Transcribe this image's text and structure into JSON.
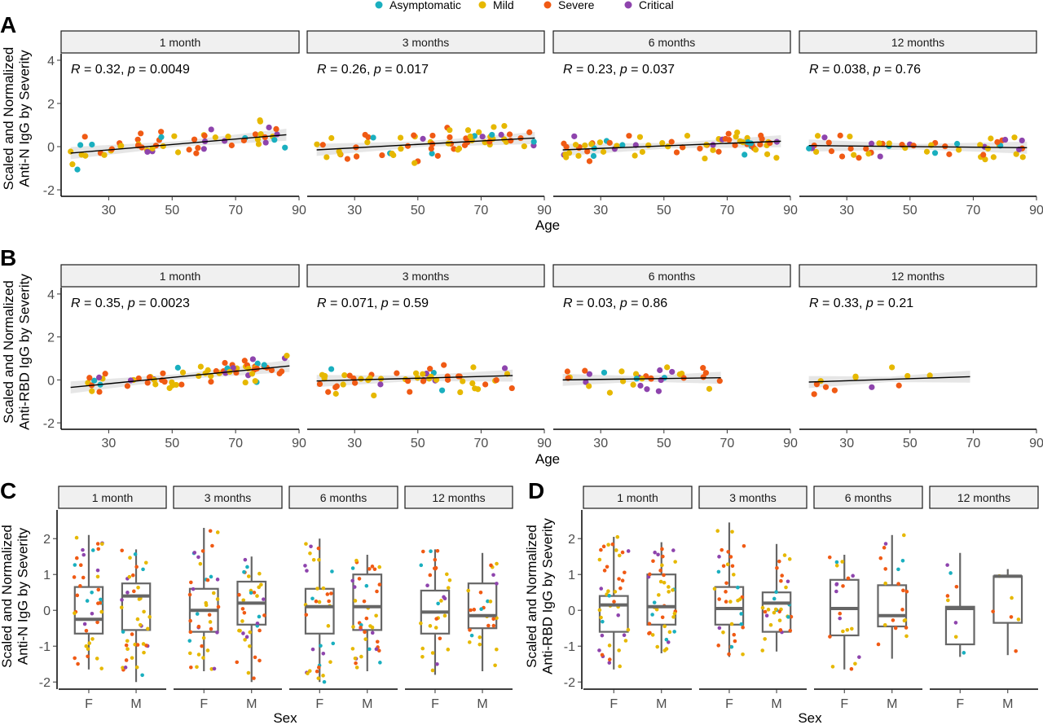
{
  "legend": {
    "items": [
      {
        "label": "Asymptomatic",
        "color": "#1aafbf"
      },
      {
        "label": "Mild",
        "color": "#e6b800"
      },
      {
        "label": "Severe",
        "color": "#f05a14"
      },
      {
        "label": "Critical",
        "color": "#8e44ad"
      }
    ]
  },
  "chart_data": [
    {
      "type": "scatter",
      "panel_label": "A",
      "ylabel": "Scaled and Normalized\nAnti-N IgG by Severity",
      "xlabel": "Age",
      "xlim": [
        15,
        90
      ],
      "xticks": [
        30,
        50,
        70,
        90
      ],
      "ylim": [
        -2.3,
        4.3
      ],
      "yticks": [
        -2,
        0,
        2,
        4
      ],
      "facets": [
        {
          "title": "1 month",
          "r": "0.32",
          "p": "0.0049",
          "fit": [
            [
              18,
              -0.3
            ],
            [
              86,
              0.55
            ]
          ],
          "n": 60
        },
        {
          "title": "3 months",
          "r": "0.26",
          "p": "0.017",
          "fit": [
            [
              18,
              -0.15
            ],
            [
              87,
              0.4
            ]
          ],
          "n": 70
        },
        {
          "title": "6 months",
          "r": "0.23",
          "p": "0.037",
          "fit": [
            [
              18,
              -0.15
            ],
            [
              87,
              0.25
            ]
          ],
          "n": 75
        },
        {
          "title": "12 months",
          "r": "0.038",
          "p": "0.76",
          "fit": [
            [
              18,
              0.05
            ],
            [
              87,
              -0.05
            ]
          ],
          "n": 55
        }
      ]
    },
    {
      "type": "scatter",
      "panel_label": "B",
      "ylabel": "Scaled and Normalized\nAnti-RBD IgG by Severity",
      "xlabel": "Age",
      "xlim": [
        15,
        90
      ],
      "xticks": [
        30,
        50,
        70,
        90
      ],
      "ylim": [
        -2.3,
        4.3
      ],
      "yticks": [
        -2,
        0,
        2,
        4
      ],
      "facets": [
        {
          "title": "1 month",
          "r": "0.35",
          "p": "0.0023",
          "fit": [
            [
              18,
              -0.35
            ],
            [
              87,
              0.65
            ]
          ],
          "n": 70
        },
        {
          "title": "3 months",
          "r": "0.071",
          "p": "0.59",
          "fit": [
            [
              18,
              -0.05
            ],
            [
              80,
              0.2
            ]
          ],
          "n": 55
        },
        {
          "title": "6 months",
          "r": "0.03",
          "p": "0.86",
          "fit": [
            [
              18,
              0.0
            ],
            [
              68,
              0.1
            ]
          ],
          "n": 35
        },
        {
          "title": "12 months",
          "r": "0.33",
          "p": "0.21",
          "fit": [
            [
              18,
              -0.1
            ],
            [
              69,
              0.15
            ]
          ],
          "n": 12
        }
      ]
    },
    {
      "type": "box",
      "panel_label": "C",
      "ylabel": "Scaled and Normalized\nAnti-N IgG by Severity",
      "xlabel": "Sex",
      "categories": [
        "F",
        "M"
      ],
      "ylim": [
        -2.2,
        2.8
      ],
      "yticks": [
        -2,
        -1,
        0,
        1,
        2
      ],
      "facets": [
        {
          "title": "1 month",
          "boxes": [
            {
              "group": "F",
              "min": -1.65,
              "q1": -0.65,
              "median": -0.25,
              "q3": 0.65,
              "max": 2.1,
              "n": 40
            },
            {
              "group": "M",
              "min": -2.0,
              "q1": -0.55,
              "median": 0.4,
              "q3": 0.75,
              "max": 1.7,
              "n": 40
            }
          ]
        },
        {
          "title": "3 months",
          "boxes": [
            {
              "group": "F",
              "min": -1.7,
              "q1": -0.6,
              "median": 0.0,
              "q3": 0.6,
              "max": 2.3,
              "n": 40
            },
            {
              "group": "M",
              "min": -2.0,
              "q1": -0.4,
              "median": 0.2,
              "q3": 0.8,
              "max": 1.5,
              "n": 35
            }
          ]
        },
        {
          "title": "6 months",
          "boxes": [
            {
              "group": "F",
              "min": -2.0,
              "q1": -0.65,
              "median": 0.1,
              "q3": 0.6,
              "max": 2.0,
              "n": 35
            },
            {
              "group": "M",
              "min": -1.7,
              "q1": -0.55,
              "median": 0.1,
              "q3": 1.0,
              "max": 1.55,
              "n": 40
            }
          ]
        },
        {
          "title": "12 months",
          "boxes": [
            {
              "group": "F",
              "min": -1.8,
              "q1": -0.65,
              "median": -0.05,
              "q3": 0.55,
              "max": 1.7,
              "n": 30
            },
            {
              "group": "M",
              "min": -1.7,
              "q1": -0.5,
              "median": -0.15,
              "q3": 0.75,
              "max": 1.6,
              "n": 25
            }
          ]
        }
      ]
    },
    {
      "type": "box",
      "panel_label": "D",
      "ylabel": "Scaled and Normalized\nAnti-RBD IgG by Severity",
      "xlabel": "Sex",
      "categories": [
        "F",
        "M"
      ],
      "ylim": [
        -2.2,
        2.8
      ],
      "yticks": [
        -2,
        -1,
        0,
        1,
        2
      ],
      "facets": [
        {
          "title": "1 month",
          "boxes": [
            {
              "group": "F",
              "min": -1.65,
              "q1": -0.6,
              "median": 0.15,
              "q3": 0.4,
              "max": 2.05,
              "n": 40
            },
            {
              "group": "M",
              "min": -1.2,
              "q1": -0.4,
              "median": 0.1,
              "q3": 1.0,
              "max": 1.9,
              "n": 40
            }
          ]
        },
        {
          "title": "3 months",
          "boxes": [
            {
              "group": "F",
              "min": -1.3,
              "q1": -0.4,
              "median": 0.05,
              "q3": 0.65,
              "max": 2.45,
              "n": 35
            },
            {
              "group": "M",
              "min": -1.15,
              "q1": -0.6,
              "median": 0.2,
              "q3": 0.5,
              "max": 1.85,
              "n": 30
            }
          ]
        },
        {
          "title": "6 months",
          "boxes": [
            {
              "group": "F",
              "min": -1.65,
              "q1": -0.7,
              "median": 0.05,
              "q3": 0.85,
              "max": 1.55,
              "n": 20
            },
            {
              "group": "M",
              "min": -1.35,
              "q1": -0.45,
              "median": -0.15,
              "q3": 0.7,
              "max": 2.1,
              "n": 20
            }
          ]
        },
        {
          "title": "12 months",
          "boxes": [
            {
              "group": "F",
              "min": -1.3,
              "q1": -0.95,
              "median": 0.05,
              "q3": 0.1,
              "max": 1.6,
              "n": 8
            },
            {
              "group": "M",
              "min": -1.25,
              "q1": -0.35,
              "median": 0.95,
              "q3": 0.95,
              "max": 1.15,
              "n": 6
            }
          ]
        }
      ]
    }
  ]
}
